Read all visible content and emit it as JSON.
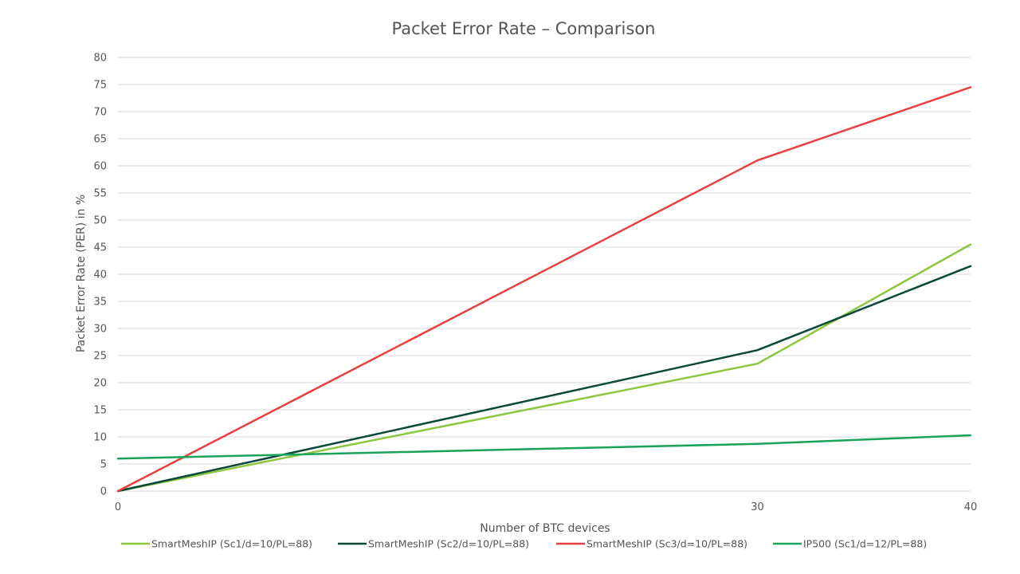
{
  "chart_data": {
    "type": "line",
    "title": "Packet Error Rate – Comparison",
    "xlabel": "Number of BTC devices",
    "ylabel": "Packet Error Rate (PER) in %",
    "x": [
      0,
      30,
      40
    ],
    "xticks": [
      "0",
      "30",
      "40"
    ],
    "xlim": [
      0,
      40
    ],
    "ylim": [
      0,
      80
    ],
    "yticks": [
      0,
      5,
      10,
      15,
      20,
      25,
      30,
      35,
      40,
      45,
      50,
      55,
      60,
      65,
      70,
      75,
      80
    ],
    "grid": true,
    "legend_position": "bottom",
    "series": [
      {
        "name": "SmartMeshIP (Sc1/d=10/PL=88)",
        "color": "#8dc63f",
        "values": [
          0,
          23.5,
          45.5
        ]
      },
      {
        "name": "SmartMeshIP (Sc2/d=10/PL=88)",
        "color": "#0b4a3b",
        "values": [
          0,
          26,
          41.5
        ]
      },
      {
        "name": "SmartMeshIP (Sc3/d=10/PL=88)",
        "color": "#e84040",
        "values": [
          0,
          61,
          74.5
        ]
      },
      {
        "name": "IP500 (Sc1/d=12/PL=88)",
        "color": "#1aa35a",
        "values": [
          6,
          8.7,
          10.3
        ]
      }
    ]
  }
}
